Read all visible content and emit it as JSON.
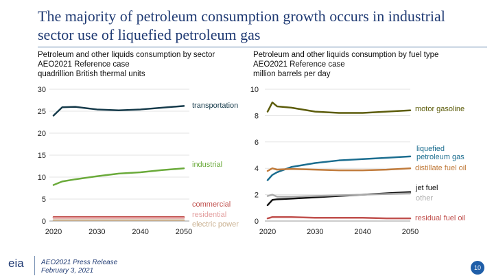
{
  "title": "The majority of petroleum consumption growth occurs in industrial sector use of liquefied petroleum gas",
  "left_panel": {
    "line1": "Petroleum and other liquids consumption by sector",
    "line2": "AEO2021 Reference case",
    "line3": "quadrillion British thermal units"
  },
  "right_panel": {
    "line1": "Petroleum and other liquids consumption by fuel type",
    "line2": "AEO2021 Reference case",
    "line3": "million barrels per day"
  },
  "footer": {
    "logo": "eia",
    "release": "AEO2021 Press Release",
    "date": "February 3, 2021",
    "page": "10"
  },
  "chart_data": [
    {
      "type": "line",
      "title": "Petroleum and other liquids consumption by sector",
      "ylabel": "quadrillion British thermal units",
      "x": [
        2020,
        2022,
        2025,
        2030,
        2035,
        2040,
        2045,
        2050
      ],
      "xticks": [
        "2020",
        "2030",
        "2040",
        "2050"
      ],
      "yticks": [
        "0",
        "5",
        "10",
        "15",
        "20",
        "25",
        "30"
      ],
      "xlim": [
        2020,
        2050
      ],
      "ylim": [
        0,
        30
      ],
      "series": [
        {
          "name": "transportation",
          "label": "transportation",
          "color": "#153a4a",
          "values": [
            24.0,
            25.9,
            26.0,
            25.4,
            25.2,
            25.4,
            25.8,
            26.2
          ]
        },
        {
          "name": "industrial",
          "label": "industrial",
          "color": "#6aaa3a",
          "values": [
            8.2,
            9.0,
            9.5,
            10.2,
            10.8,
            11.1,
            11.6,
            12.0
          ]
        },
        {
          "name": "commercial",
          "label": "commercial",
          "color": "#c0504d",
          "values": [
            0.9,
            0.9,
            0.9,
            0.9,
            0.9,
            0.9,
            0.9,
            0.9
          ]
        },
        {
          "name": "residential",
          "label": "residential",
          "color": "#e3a0a0",
          "values": [
            0.7,
            0.7,
            0.7,
            0.7,
            0.7,
            0.7,
            0.7,
            0.7
          ]
        },
        {
          "name": "electric power",
          "label": "electric power",
          "color": "#c9b090",
          "values": [
            0.2,
            0.2,
            0.2,
            0.2,
            0.2,
            0.2,
            0.2,
            0.2
          ]
        }
      ]
    },
    {
      "type": "line",
      "title": "Petroleum and other liquids consumption by fuel type",
      "ylabel": "million barrels per day",
      "x": [
        2020,
        2021,
        2022,
        2025,
        2030,
        2035,
        2040,
        2045,
        2050
      ],
      "xticks": [
        "2020",
        "2030",
        "2040",
        "2050"
      ],
      "yticks": [
        "0",
        "2",
        "4",
        "6",
        "8",
        "10"
      ],
      "xlim": [
        2020,
        2050
      ],
      "ylim": [
        0,
        10
      ],
      "series": [
        {
          "name": "motor gasoline",
          "label": "motor gasoline",
          "color": "#5c5c0a",
          "values": [
            8.3,
            9.0,
            8.7,
            8.6,
            8.3,
            8.2,
            8.2,
            8.3,
            8.4
          ]
        },
        {
          "name": "liquefied petroleum gas",
          "label": "liquefied petroleum gas",
          "color": "#1b6d8f",
          "values": [
            3.1,
            3.5,
            3.7,
            4.1,
            4.4,
            4.6,
            4.7,
            4.8,
            4.9
          ]
        },
        {
          "name": "distillate fuel oil",
          "label": "distillate fuel oil",
          "color": "#c07a3a",
          "values": [
            3.8,
            4.0,
            3.9,
            3.95,
            3.9,
            3.85,
            3.85,
            3.9,
            4.0
          ]
        },
        {
          "name": "jet fuel",
          "label": "jet fuel",
          "color": "#111111",
          "values": [
            1.2,
            1.6,
            1.65,
            1.7,
            1.8,
            1.9,
            2.0,
            2.1,
            2.2
          ]
        },
        {
          "name": "other",
          "label": "other",
          "color": "#aaaaaa",
          "values": [
            1.9,
            2.0,
            1.85,
            1.85,
            1.9,
            1.95,
            2.0,
            2.05,
            2.1
          ]
        },
        {
          "name": "residual fuel oil",
          "label": "residual fuel oil",
          "color": "#c0504d",
          "values": [
            0.2,
            0.3,
            0.3,
            0.3,
            0.25,
            0.25,
            0.25,
            0.2,
            0.2
          ]
        }
      ]
    }
  ]
}
